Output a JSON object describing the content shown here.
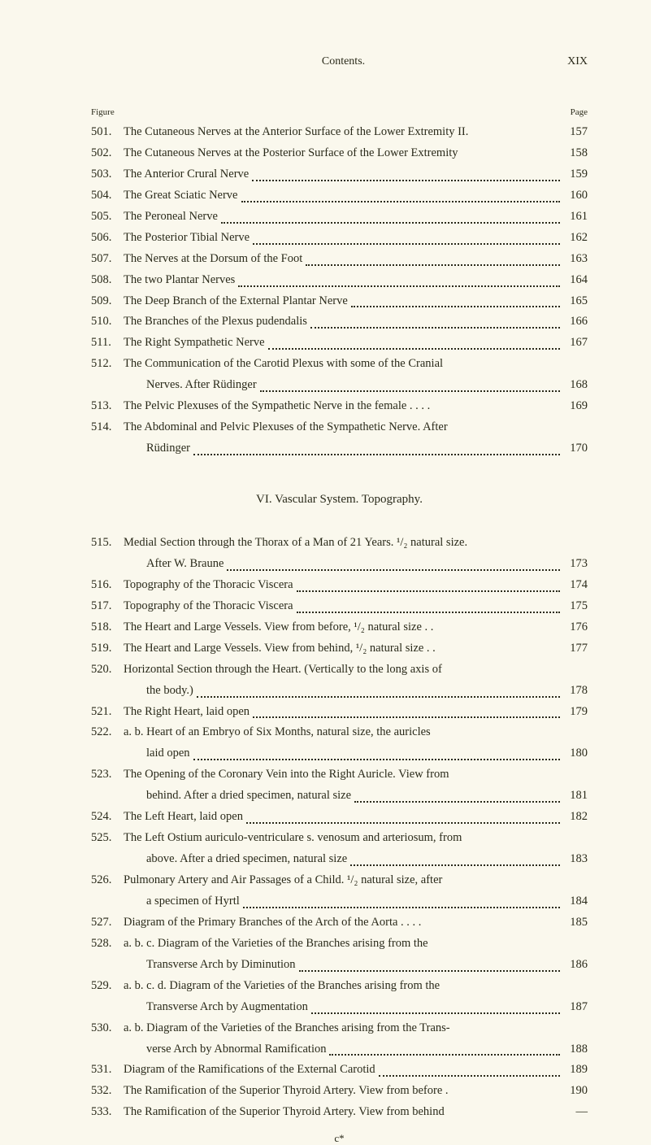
{
  "header": {
    "title": "Contents.",
    "page_roman": "XIX"
  },
  "labels": {
    "figure": "Figure",
    "page": "Page"
  },
  "section_title": "VI. Vascular System. Topography.",
  "footer": "c*",
  "entries_top": [
    {
      "num": "501.",
      "text": "The Cutaneous Nerves at the Anterior Surface of the Lower Extremity II.",
      "page": "157",
      "nodots": true
    },
    {
      "num": "502.",
      "text": "The Cutaneous Nerves at the Posterior Surface of the Lower Extremity",
      "page": "158",
      "nodots": true
    },
    {
      "num": "503.",
      "text": "The Anterior Crural Nerve",
      "page": "159"
    },
    {
      "num": "504.",
      "text": "The Great Sciatic Nerve",
      "page": "160"
    },
    {
      "num": "505.",
      "text": "The Peroneal Nerve",
      "page": "161"
    },
    {
      "num": "506.",
      "text": "The Posterior Tibial Nerve",
      "page": "162"
    },
    {
      "num": "507.",
      "text": "The Nerves at the Dorsum of the Foot",
      "page": "163"
    },
    {
      "num": "508.",
      "text": "The two Plantar Nerves",
      "page": "164"
    },
    {
      "num": "509.",
      "text": "The Deep Branch of the External Plantar Nerve",
      "page": "165"
    },
    {
      "num": "510.",
      "text": "The Branches of the Plexus pudendalis",
      "page": "166"
    },
    {
      "num": "511.",
      "text": "The Right Sympathetic Nerve",
      "page": "167"
    },
    {
      "num": "512.",
      "text": "The Communication of the Carotid Plexus with some of the Cranial",
      "cont": "Nerves. After Rüdinger",
      "page": "168"
    },
    {
      "num": "513.",
      "text": "The Pelvic Plexuses of the Sympathetic Nerve in the female . . . .",
      "page": "169",
      "nodots": true
    },
    {
      "num": "514.",
      "text": "The Abdominal and Pelvic Plexuses of the Sympathetic Nerve. After",
      "cont": "Rüdinger",
      "page": "170"
    }
  ],
  "entries_bottom": [
    {
      "num": "515.",
      "text": "Medial Section through the Thorax of a Man of 21 Years. ¹/₂ natural size.",
      "cont": "After W. Braune",
      "page": "173"
    },
    {
      "num": "516.",
      "text": "Topography of the Thoracic Viscera",
      "page": "174"
    },
    {
      "num": "517.",
      "text": "Topography of the Thoracic Viscera",
      "page": "175"
    },
    {
      "num": "518.",
      "text": "The Heart and Large Vessels. View from before, ¹/₂ natural size . .",
      "page": "176",
      "nodots": true
    },
    {
      "num": "519.",
      "text": "The Heart and Large Vessels. View from behind, ¹/₂ natural size . .",
      "page": "177",
      "nodots": true
    },
    {
      "num": "520.",
      "text": "Horizontal Section through the Heart. (Vertically to the long axis of",
      "cont": "the body.)",
      "page": "178"
    },
    {
      "num": "521.",
      "text": "The Right Heart, laid open",
      "page": "179"
    },
    {
      "num": "522.",
      "text": "a. b. Heart of an Embryo of Six Months, natural size, the auricles",
      "cont": "laid open",
      "page": "180"
    },
    {
      "num": "523.",
      "text": "The Opening of the Coronary Vein into the Right Auricle. View from",
      "cont": "behind. After a dried specimen, natural size",
      "page": "181"
    },
    {
      "num": "524.",
      "text": "The Left Heart, laid open",
      "page": "182"
    },
    {
      "num": "525.",
      "text": "The Left Ostium auriculo-ventriculare s. venosum and arteriosum, from",
      "cont": "above. After a dried specimen, natural size",
      "page": "183"
    },
    {
      "num": "526.",
      "text": "Pulmonary Artery and Air Passages of a Child. ¹/₂ natural size, after",
      "cont": "a specimen of Hyrtl",
      "page": "184"
    },
    {
      "num": "527.",
      "text": "Diagram of the Primary Branches of the Arch of the Aorta . . . .",
      "page": "185",
      "nodots": true
    },
    {
      "num": "528.",
      "text": "a. b. c. Diagram of the Varieties of the Branches arising from the",
      "cont": "Transverse Arch by Diminution",
      "page": "186"
    },
    {
      "num": "529.",
      "text": "a. b. c. d. Diagram of the Varieties of the Branches arising from the",
      "cont": "Transverse Arch by Augmentation",
      "page": "187"
    },
    {
      "num": "530.",
      "text": "a. b. Diagram of the Varieties of the Branches arising from the Trans-",
      "cont": "verse Arch by Abnormal Ramification",
      "page": "188"
    },
    {
      "num": "531.",
      "text": "Diagram of the Ramifications of the External Carotid",
      "page": "189"
    },
    {
      "num": "532.",
      "text": "The Ramification of the Superior Thyroid Artery. View from before .",
      "page": "190",
      "nodots": true
    },
    {
      "num": "533.",
      "text": "The Ramification of the Superior Thyroid Artery. View from behind",
      "page": "—",
      "nodots": true
    }
  ],
  "colors": {
    "background": "#faf8ed",
    "text": "#2a2a1a"
  },
  "typography": {
    "body_fontsize": 14.5,
    "header_fontsize": 14,
    "label_fontsize": 11,
    "section_fontsize": 15,
    "font_family": "Georgia, Times New Roman, serif"
  }
}
